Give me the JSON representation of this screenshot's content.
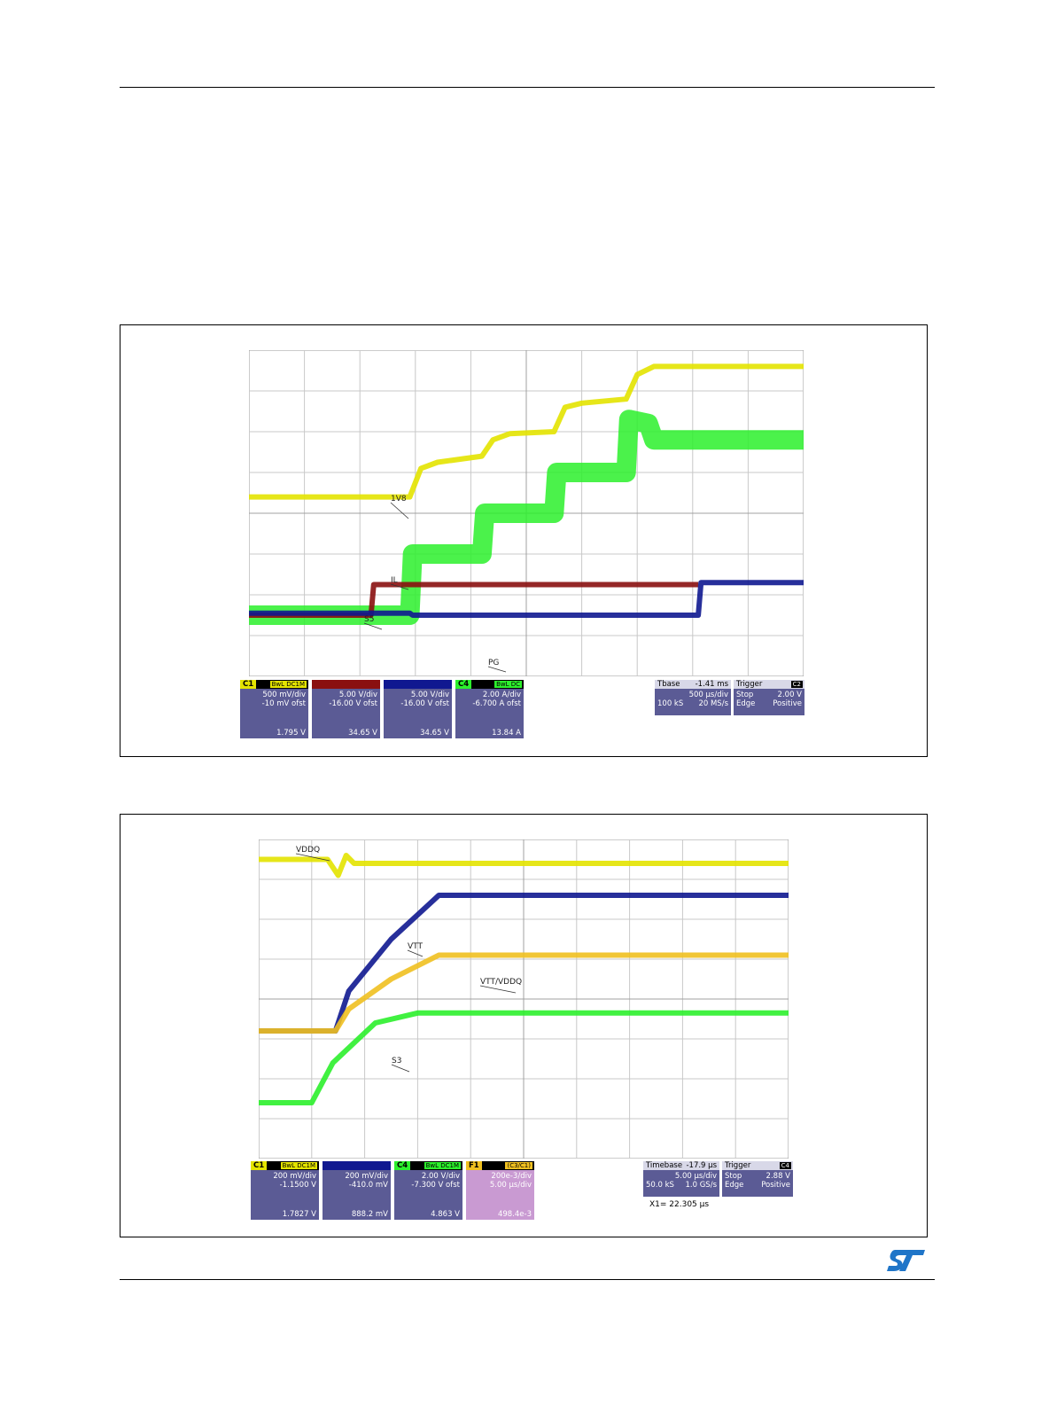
{
  "page": {},
  "chart_data": [
    {
      "type": "line",
      "id": "fig1",
      "grid": true,
      "xlim": [
        0,
        10
      ],
      "ylim": [
        -4,
        4
      ],
      "series": [
        {
          "name": "1V8",
          "color": "#e3e300",
          "points": [
            [
              0,
              0.4
            ],
            [
              1.5,
              0.4
            ],
            [
              2.9,
              0.4
            ],
            [
              3.1,
              1.1
            ],
            [
              3.4,
              1.25
            ],
            [
              4.2,
              1.4
            ],
            [
              4.4,
              1.8
            ],
            [
              4.7,
              1.95
            ],
            [
              5.5,
              2.0
            ],
            [
              5.7,
              2.6
            ],
            [
              6.0,
              2.7
            ],
            [
              6.8,
              2.8
            ],
            [
              7.0,
              3.4
            ],
            [
              7.3,
              3.6
            ],
            [
              10,
              3.6
            ]
          ]
        },
        {
          "name": "IL",
          "color": "#2cf02c",
          "points": [
            [
              0,
              -2.5
            ],
            [
              2.9,
              -2.5
            ],
            [
              2.95,
              -1.0
            ],
            [
              4.2,
              -1.0
            ],
            [
              4.25,
              0.0
            ],
            [
              5.5,
              0.0
            ],
            [
              5.55,
              1.0
            ],
            [
              6.8,
              1.0
            ],
            [
              6.85,
              2.3
            ],
            [
              7.2,
              2.2
            ],
            [
              7.3,
              1.8
            ],
            [
              10,
              1.8
            ]
          ]
        },
        {
          "name": "S5",
          "color": "#8a1010",
          "points": [
            [
              0,
              -2.5
            ],
            [
              2.2,
              -2.5
            ],
            [
              2.25,
              -1.75
            ],
            [
              8.1,
              -1.75
            ]
          ]
        },
        {
          "name": "PG",
          "color": "#101890",
          "points": [
            [
              0,
              -2.45
            ],
            [
              2.9,
              -2.45
            ],
            [
              2.95,
              -2.5
            ],
            [
              8.1,
              -2.5
            ],
            [
              8.15,
              -1.7
            ],
            [
              10,
              -1.7
            ]
          ]
        }
      ],
      "annotations": [
        "1V8",
        "IL",
        "S5",
        "PG"
      ],
      "channel_boxes": [
        {
          "ch": "C1",
          "tag": "BwL DC1M",
          "lines": [
            "500 mV/div",
            "-10 mV ofst"
          ],
          "value": "1.795 V",
          "color": "#e3e300"
        },
        {
          "ch": "",
          "tag": "",
          "lines": [
            "5.00 V/div",
            "-16.00 V ofst"
          ],
          "value": "34.65 V",
          "color": "#8a1010"
        },
        {
          "ch": "",
          "tag": "",
          "lines": [
            "5.00 V/div",
            "-16.00 V ofst"
          ],
          "value": "34.65 V",
          "color": "#101890"
        },
        {
          "ch": "C4",
          "tag": "BwL DC",
          "lines": [
            "2.00 A/div",
            "-6.700 A ofst"
          ],
          "value": "13.84 A",
          "color": "#2cf02c"
        }
      ],
      "timebase": {
        "label": "Tbase",
        "value": "-1.41 ms",
        "line2": "500 µs/div",
        "line3a": "100 kS",
        "line3b": "20 MS/s"
      },
      "trigger": {
        "label": "Trigger",
        "ch": "C2",
        "line2a": "Stop",
        "line2b": "2.00 V",
        "line3a": "Edge",
        "line3b": "Positive"
      }
    },
    {
      "type": "line",
      "id": "fig2",
      "grid": true,
      "xlim": [
        0,
        10
      ],
      "ylim": [
        -4,
        4
      ],
      "series": [
        {
          "name": "VDDQ",
          "color": "#e3e300",
          "points": [
            [
              0,
              3.5
            ],
            [
              1.3,
              3.5
            ],
            [
              1.5,
              3.1
            ],
            [
              1.65,
              3.6
            ],
            [
              1.8,
              3.4
            ],
            [
              10,
              3.4
            ]
          ]
        },
        {
          "name": "VTT",
          "color": "#101890",
          "points": [
            [
              0,
              -0.8
            ],
            [
              1.45,
              -0.8
            ],
            [
              1.7,
              0.2
            ],
            [
              2.5,
              1.5
            ],
            [
              3.4,
              2.6
            ],
            [
              10,
              2.6
            ]
          ]
        },
        {
          "name": "VTT/VDDQ",
          "color": "#f0c020",
          "points": [
            [
              0,
              -0.8
            ],
            [
              1.45,
              -0.8
            ],
            [
              1.7,
              -0.25
            ],
            [
              2.5,
              0.5
            ],
            [
              3.4,
              1.1
            ],
            [
              10,
              1.1
            ]
          ]
        },
        {
          "name": "S3",
          "color": "#2cf02c",
          "points": [
            [
              0,
              -2.6
            ],
            [
              1.0,
              -2.6
            ],
            [
              1.4,
              -1.6
            ],
            [
              2.2,
              -0.6
            ],
            [
              3.0,
              -0.35
            ],
            [
              10,
              -0.35
            ]
          ]
        }
      ],
      "annotations": [
        "VDDQ",
        "VTT",
        "VTT/VDDQ",
        "S3"
      ],
      "channel_boxes": [
        {
          "ch": "C1",
          "tag": "BwL DC1M",
          "lines": [
            "200 mV/div",
            "-1.1500 V"
          ],
          "value": "1.7827 V",
          "color": "#e3e300"
        },
        {
          "ch": "",
          "tag": "",
          "lines": [
            "200 mV/div",
            "-410.0 mV"
          ],
          "value": "888.2 mV",
          "color": "#101890"
        },
        {
          "ch": "C4",
          "tag": "BwL DC1M",
          "lines": [
            "2.00 V/div",
            "-7.300 V ofst"
          ],
          "value": "4.863 V",
          "color": "#2cf02c"
        },
        {
          "ch": "F1",
          "tag": "(C3/C1)",
          "lines": [
            "200e-3/div",
            "5.00 µs/div"
          ],
          "value": "498.4e-3",
          "color": "#f0c020",
          "math": true
        }
      ],
      "timebase": {
        "label": "Timebase",
        "value": "-17.9 µs",
        "line2": "5.00 µs/div",
        "line3a": "50.0 kS",
        "line3b": "1.0 GS/s"
      },
      "trigger": {
        "label": "Trigger",
        "ch": "C4",
        "line2a": "Stop",
        "line2b": "2.88 V",
        "line3a": "Edge",
        "line3b": "Positive"
      },
      "cursor": {
        "label": "X1=",
        "value": "22.305 µs"
      }
    }
  ]
}
